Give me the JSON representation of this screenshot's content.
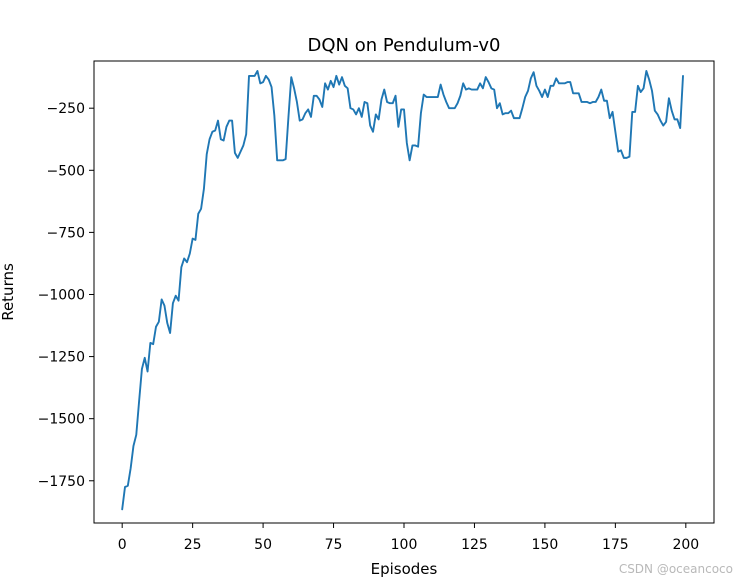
{
  "chart_data": {
    "type": "line",
    "title": "DQN on Pendulum-v0",
    "xlabel": "Episodes",
    "ylabel": "Returns",
    "xlim": [
      -10,
      210
    ],
    "ylim": [
      -1920,
      -60
    ],
    "xticks": [
      0,
      25,
      50,
      75,
      100,
      125,
      150,
      175,
      200
    ],
    "yticks": [
      -1750,
      -1500,
      -1250,
      -1000,
      -750,
      -500,
      -250
    ],
    "ytick_labels": [
      "−1750",
      "−1500",
      "−1250",
      "−1000",
      "−750",
      "−500",
      "−250"
    ],
    "grid": false,
    "series": [
      {
        "color": "#1f77b4",
        "points": [
          [
            0,
            -1865
          ],
          [
            1,
            -1775
          ],
          [
            2,
            -1770
          ],
          [
            3,
            -1700
          ],
          [
            4,
            -1610
          ],
          [
            5,
            -1565
          ],
          [
            6,
            -1430
          ],
          [
            7,
            -1300
          ],
          [
            8,
            -1255
          ],
          [
            9,
            -1310
          ],
          [
            10,
            -1195
          ],
          [
            11,
            -1200
          ],
          [
            12,
            -1130
          ],
          [
            13,
            -1110
          ],
          [
            14,
            -1020
          ],
          [
            15,
            -1045
          ],
          [
            16,
            -1115
          ],
          [
            17,
            -1155
          ],
          [
            18,
            -1035
          ],
          [
            19,
            -1005
          ],
          [
            20,
            -1025
          ],
          [
            21,
            -890
          ],
          [
            22,
            -855
          ],
          [
            23,
            -870
          ],
          [
            24,
            -835
          ],
          [
            25,
            -775
          ],
          [
            26,
            -780
          ],
          [
            27,
            -675
          ],
          [
            28,
            -655
          ],
          [
            29,
            -575
          ],
          [
            30,
            -435
          ],
          [
            31,
            -375
          ],
          [
            32,
            -345
          ],
          [
            33,
            -340
          ],
          [
            34,
            -300
          ],
          [
            35,
            -375
          ],
          [
            36,
            -380
          ],
          [
            37,
            -325
          ],
          [
            38,
            -300
          ],
          [
            39,
            -300
          ],
          [
            40,
            -430
          ],
          [
            41,
            -450
          ],
          [
            42,
            -425
          ],
          [
            43,
            -400
          ],
          [
            44,
            -355
          ],
          [
            45,
            -120
          ],
          [
            46,
            -120
          ],
          [
            47,
            -120
          ],
          [
            48,
            -100
          ],
          [
            49,
            -150
          ],
          [
            50,
            -145
          ],
          [
            51,
            -120
          ],
          [
            52,
            -135
          ],
          [
            53,
            -165
          ],
          [
            54,
            -280
          ],
          [
            55,
            -460
          ],
          [
            56,
            -460
          ],
          [
            57,
            -460
          ],
          [
            58,
            -455
          ],
          [
            59,
            -285
          ],
          [
            60,
            -125
          ],
          [
            61,
            -170
          ],
          [
            62,
            -225
          ],
          [
            63,
            -300
          ],
          [
            64,
            -295
          ],
          [
            65,
            -270
          ],
          [
            66,
            -255
          ],
          [
            67,
            -285
          ],
          [
            68,
            -200
          ],
          [
            69,
            -200
          ],
          [
            70,
            -215
          ],
          [
            71,
            -245
          ],
          [
            72,
            -150
          ],
          [
            73,
            -175
          ],
          [
            74,
            -140
          ],
          [
            75,
            -165
          ],
          [
            76,
            -120
          ],
          [
            77,
            -155
          ],
          [
            78,
            -125
          ],
          [
            79,
            -160
          ],
          [
            80,
            -170
          ],
          [
            81,
            -250
          ],
          [
            82,
            -255
          ],
          [
            83,
            -275
          ],
          [
            84,
            -250
          ],
          [
            85,
            -285
          ],
          [
            86,
            -225
          ],
          [
            87,
            -230
          ],
          [
            88,
            -320
          ],
          [
            89,
            -345
          ],
          [
            90,
            -275
          ],
          [
            91,
            -295
          ],
          [
            92,
            -215
          ],
          [
            93,
            -175
          ],
          [
            94,
            -225
          ],
          [
            95,
            -230
          ],
          [
            96,
            -230
          ],
          [
            97,
            -200
          ],
          [
            98,
            -325
          ],
          [
            99,
            -255
          ],
          [
            100,
            -255
          ],
          [
            101,
            -390
          ],
          [
            102,
            -460
          ],
          [
            103,
            -400
          ],
          [
            104,
            -400
          ],
          [
            105,
            -405
          ],
          [
            106,
            -270
          ],
          [
            107,
            -195
          ],
          [
            108,
            -205
          ],
          [
            109,
            -205
          ],
          [
            110,
            -205
          ],
          [
            111,
            -205
          ],
          [
            112,
            -205
          ],
          [
            113,
            -155
          ],
          [
            114,
            -195
          ],
          [
            115,
            -225
          ],
          [
            116,
            -250
          ],
          [
            117,
            -250
          ],
          [
            118,
            -250
          ],
          [
            119,
            -230
          ],
          [
            120,
            -200
          ],
          [
            121,
            -150
          ],
          [
            122,
            -175
          ],
          [
            123,
            -170
          ],
          [
            124,
            -175
          ],
          [
            125,
            -175
          ],
          [
            126,
            -175
          ],
          [
            127,
            -150
          ],
          [
            128,
            -170
          ],
          [
            129,
            -125
          ],
          [
            130,
            -145
          ],
          [
            131,
            -170
          ],
          [
            132,
            -175
          ],
          [
            133,
            -250
          ],
          [
            134,
            -230
          ],
          [
            135,
            -275
          ],
          [
            136,
            -270
          ],
          [
            137,
            -270
          ],
          [
            138,
            -260
          ],
          [
            139,
            -290
          ],
          [
            140,
            -290
          ],
          [
            141,
            -290
          ],
          [
            142,
            -250
          ],
          [
            143,
            -205
          ],
          [
            144,
            -180
          ],
          [
            145,
            -130
          ],
          [
            146,
            -105
          ],
          [
            147,
            -160
          ],
          [
            148,
            -180
          ],
          [
            149,
            -205
          ],
          [
            150,
            -175
          ],
          [
            151,
            -205
          ],
          [
            152,
            -160
          ],
          [
            153,
            -160
          ],
          [
            154,
            -130
          ],
          [
            155,
            -150
          ],
          [
            156,
            -150
          ],
          [
            157,
            -150
          ],
          [
            158,
            -145
          ],
          [
            159,
            -145
          ],
          [
            160,
            -190
          ],
          [
            161,
            -190
          ],
          [
            162,
            -190
          ],
          [
            163,
            -225
          ],
          [
            164,
            -225
          ],
          [
            165,
            -225
          ],
          [
            166,
            -230
          ],
          [
            167,
            -225
          ],
          [
            168,
            -225
          ],
          [
            169,
            -205
          ],
          [
            170,
            -175
          ],
          [
            171,
            -220
          ],
          [
            172,
            -220
          ],
          [
            173,
            -290
          ],
          [
            174,
            -265
          ],
          [
            175,
            -345
          ],
          [
            176,
            -425
          ],
          [
            177,
            -420
          ],
          [
            178,
            -450
          ],
          [
            179,
            -450
          ],
          [
            180,
            -445
          ],
          [
            181,
            -265
          ],
          [
            182,
            -265
          ],
          [
            183,
            -160
          ],
          [
            184,
            -185
          ],
          [
            185,
            -170
          ],
          [
            186,
            -100
          ],
          [
            187,
            -135
          ],
          [
            188,
            -180
          ],
          [
            189,
            -260
          ],
          [
            190,
            -275
          ],
          [
            191,
            -300
          ],
          [
            192,
            -320
          ],
          [
            193,
            -305
          ],
          [
            194,
            -210
          ],
          [
            195,
            -260
          ],
          [
            196,
            -295
          ],
          [
            197,
            -295
          ],
          [
            198,
            -330
          ],
          [
            199,
            -120
          ]
        ]
      }
    ]
  },
  "watermark": "CSDN @oceancoco"
}
